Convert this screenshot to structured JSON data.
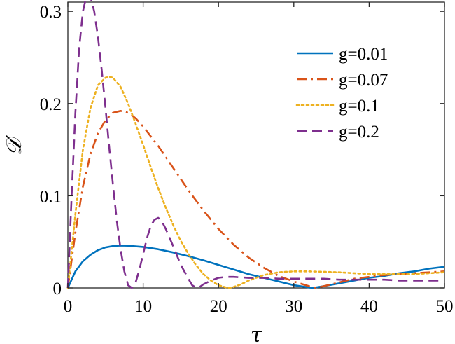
{
  "chart_data": {
    "type": "line",
    "xlabel": "τ",
    "ylabel": "𝒟′",
    "xlim": [
      0,
      50
    ],
    "ylim": [
      0,
      0.31
    ],
    "xticks": [
      0,
      10,
      20,
      30,
      40,
      50
    ],
    "xtick_labels": [
      "0",
      "10",
      "20",
      "30",
      "40",
      "50"
    ],
    "yticks": [
      0,
      0.1,
      0.2,
      0.3
    ],
    "ytick_labels": [
      "0",
      "0.1",
      "0.2",
      "0.3"
    ],
    "grid": false,
    "legend_position": "top-right",
    "series": [
      {
        "name": "g=0.01",
        "color": "#0072BD",
        "dash": "solid",
        "x": [
          0,
          1,
          2,
          3,
          4,
          5,
          6,
          7,
          8,
          10,
          12,
          14,
          16,
          18,
          20,
          22,
          24,
          26,
          28,
          30,
          32,
          32.5,
          34,
          36,
          38,
          40,
          42,
          44,
          46,
          48,
          50
        ],
        "y": [
          0,
          0.018,
          0.029,
          0.036,
          0.041,
          0.044,
          0.0455,
          0.046,
          0.0458,
          0.0445,
          0.042,
          0.0385,
          0.0345,
          0.03,
          0.025,
          0.02,
          0.015,
          0.011,
          0.007,
          0.003,
          0.0005,
          0.0,
          0.002,
          0.005,
          0.008,
          0.011,
          0.013,
          0.016,
          0.018,
          0.021,
          0.023
        ]
      },
      {
        "name": "g=0.07",
        "color": "#D95319",
        "dash": "dashdot",
        "x": [
          0,
          1,
          2,
          3,
          4,
          5,
          6,
          7,
          8,
          9,
          10,
          12,
          14,
          16,
          18,
          20,
          22,
          24,
          26,
          28,
          30,
          32,
          33,
          34,
          36,
          38,
          40,
          42,
          44,
          46,
          48,
          50
        ],
        "y": [
          0,
          0.06,
          0.11,
          0.145,
          0.168,
          0.182,
          0.19,
          0.192,
          0.19,
          0.184,
          0.175,
          0.154,
          0.13,
          0.106,
          0.084,
          0.064,
          0.047,
          0.033,
          0.022,
          0.013,
          0.007,
          0.002,
          0.0,
          0.002,
          0.006,
          0.01,
          0.012,
          0.014,
          0.015,
          0.016,
          0.017,
          0.018
        ]
      },
      {
        "name": "g=0.1",
        "color": "#EDB120",
        "dash": "dotted",
        "x": [
          0,
          1,
          2,
          3,
          4,
          5,
          5.5,
          6,
          7,
          8,
          9,
          10,
          11,
          12,
          13,
          14,
          15,
          16,
          17,
          18,
          19,
          20,
          21,
          21.5,
          22,
          23,
          24,
          26,
          28,
          30,
          32,
          34,
          36,
          38,
          40,
          42,
          44,
          46,
          48,
          50
        ],
        "y": [
          0,
          0.08,
          0.15,
          0.195,
          0.22,
          0.228,
          0.229,
          0.228,
          0.218,
          0.2,
          0.178,
          0.155,
          0.131,
          0.108,
          0.087,
          0.068,
          0.051,
          0.037,
          0.025,
          0.015,
          0.008,
          0.003,
          0.0005,
          0.0,
          0.001,
          0.004,
          0.008,
          0.014,
          0.017,
          0.018,
          0.018,
          0.0175,
          0.017,
          0.016,
          0.015,
          0.015,
          0.015,
          0.015,
          0.016,
          0.017
        ]
      },
      {
        "name": "g=0.2",
        "color": "#7E2F8E",
        "dash": "dashed",
        "x": [
          0,
          0.5,
          1,
          1.5,
          2,
          2.5,
          3,
          3.5,
          4,
          4.5,
          5,
          5.5,
          6,
          6.5,
          7,
          7.5,
          8,
          8.5,
          9,
          9.5,
          10,
          10.5,
          11,
          11.5,
          12,
          12.5,
          13,
          14,
          15,
          16,
          16.5,
          17,
          17.5,
          18,
          19,
          20,
          21,
          22,
          24,
          26,
          28,
          30,
          32,
          34,
          36,
          38,
          40,
          42,
          44,
          46,
          48,
          50
        ],
        "y": [
          0,
          0.1,
          0.19,
          0.26,
          0.3,
          0.318,
          0.316,
          0.3,
          0.272,
          0.236,
          0.195,
          0.152,
          0.111,
          0.073,
          0.042,
          0.018,
          0.003,
          0.0,
          0.006,
          0.02,
          0.037,
          0.054,
          0.067,
          0.074,
          0.076,
          0.072,
          0.064,
          0.045,
          0.025,
          0.01,
          0.003,
          0.0005,
          0.001,
          0.004,
          0.008,
          0.011,
          0.012,
          0.012,
          0.011,
          0.011,
          0.01,
          0.01,
          0.01,
          0.01,
          0.009,
          0.009,
          0.009,
          0.009,
          0.008,
          0.008,
          0.008,
          0.008
        ]
      }
    ]
  }
}
